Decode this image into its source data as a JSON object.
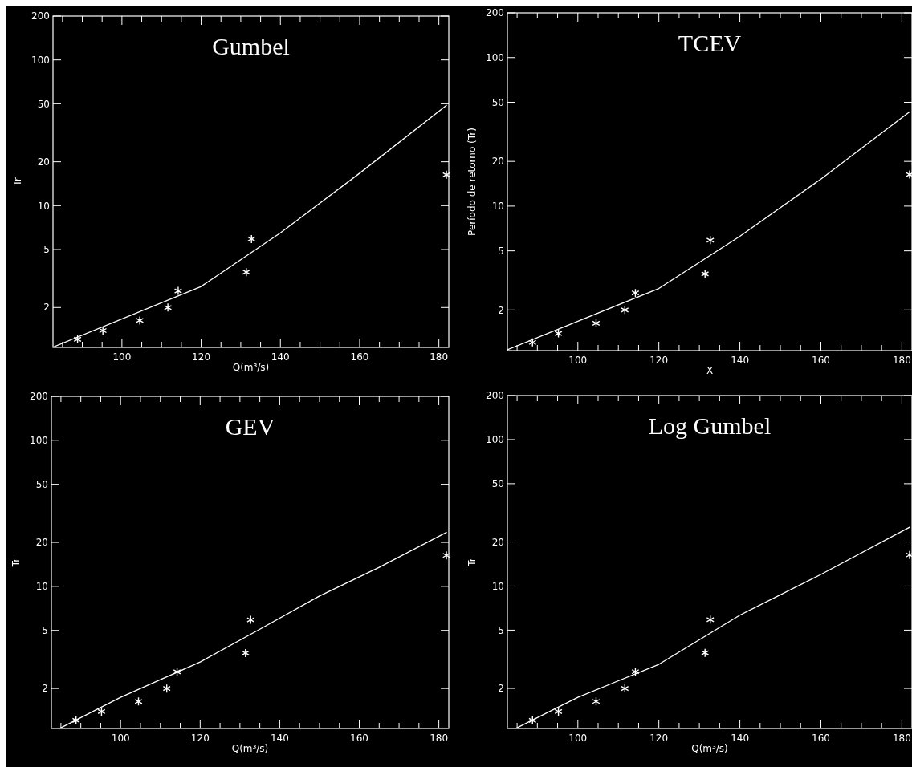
{
  "chart_data": [
    {
      "type": "line",
      "log": true,
      "title": "Gumbel",
      "xlabel": "Q(m³/s)",
      "ylabel": "Tr",
      "xlim": [
        82.6,
        182.5
      ],
      "ylim": [
        1.065,
        200
      ],
      "xticks": [
        {
          "value": 85,
          "label": null
        },
        {
          "value": 90,
          "label": null
        },
        {
          "value": 95,
          "label": null
        },
        100,
        {
          "value": 105,
          "label": null
        },
        {
          "value": 110,
          "label": null
        },
        {
          "value": 115,
          "label": null
        },
        120,
        {
          "value": 125,
          "label": null
        },
        {
          "value": 130,
          "label": null
        },
        {
          "value": 135,
          "label": null
        },
        140,
        {
          "value": 145,
          "label": null
        },
        {
          "value": 150,
          "label": null
        },
        {
          "value": 155,
          "label": null
        },
        160,
        {
          "value": 165,
          "label": null
        },
        {
          "value": 170,
          "label": null
        },
        {
          "value": 175,
          "label": null
        },
        180
      ],
      "yticks": [
        2,
        5,
        10,
        20,
        50,
        100,
        200
      ],
      "grid": false,
      "series": [
        {
          "type": "scatter",
          "marker": "cross",
          "color": "#ffffff",
          "x": [
            88.8,
            95.2,
            104.5,
            111.6,
            114.2,
            131.4,
            132.7,
            181.9
          ],
          "values": [
            1.21,
            1.39,
            1.63,
            2,
            2.6,
            3.5,
            5.9,
            16.3
          ]
        },
        {
          "type": "line",
          "marker": "none",
          "color": "#ffffff",
          "x": [
            82.6,
            120,
            140,
            160,
            182
          ],
          "values": [
            1.07,
            2.79,
            6.5,
            16.7,
            49
          ]
        }
      ]
    },
    {
      "type": "line",
      "log": true,
      "title": "TCEV",
      "xlabel": "X",
      "ylabel": "Período de retorno (Tr)",
      "xlim": [
        82.6,
        182.5
      ],
      "ylim": [
        1.065,
        200
      ],
      "xticks": [
        {
          "value": 85,
          "label": null
        },
        {
          "value": 90,
          "label": null
        },
        {
          "value": 95,
          "label": null
        },
        100,
        {
          "value": 105,
          "label": null
        },
        {
          "value": 110,
          "label": null
        },
        {
          "value": 115,
          "label": null
        },
        120,
        {
          "value": 125,
          "label": null
        },
        {
          "value": 130,
          "label": null
        },
        {
          "value": 135,
          "label": null
        },
        140,
        {
          "value": 145,
          "label": null
        },
        {
          "value": 150,
          "label": null
        },
        {
          "value": 155,
          "label": null
        },
        160,
        {
          "value": 165,
          "label": null
        },
        {
          "value": 170,
          "label": null
        },
        {
          "value": 175,
          "label": null
        },
        180
      ],
      "yticks": [
        2,
        5,
        10,
        20,
        50,
        100,
        200
      ],
      "grid": false,
      "series": [
        {
          "type": "scatter",
          "marker": "cross",
          "color": "#ffffff",
          "x": [
            88.8,
            95.2,
            104.5,
            111.6,
            114.2,
            131.4,
            132.7,
            181.9
          ],
          "values": [
            1.21,
            1.39,
            1.63,
            2,
            2.6,
            3.5,
            5.9,
            16.3
          ]
        },
        {
          "type": "line",
          "marker": "none",
          "color": "#ffffff",
          "x": [
            82.6,
            120,
            140,
            160,
            182
          ],
          "values": [
            1.08,
            2.79,
            6.27,
            15.2,
            43.3
          ]
        }
      ]
    },
    {
      "type": "line",
      "log": true,
      "title": "GEV",
      "xlabel": "Q(m³/s)",
      "ylabel": "Tr",
      "xlim": [
        82.6,
        182.5
      ],
      "ylim": [
        1.065,
        200
      ],
      "xticks": [
        {
          "value": 85,
          "label": null
        },
        {
          "value": 90,
          "label": null
        },
        {
          "value": 95,
          "label": null
        },
        100,
        {
          "value": 105,
          "label": null
        },
        {
          "value": 110,
          "label": null
        },
        {
          "value": 115,
          "label": null
        },
        120,
        {
          "value": 125,
          "label": null
        },
        {
          "value": 130,
          "label": null
        },
        {
          "value": 135,
          "label": null
        },
        140,
        {
          "value": 145,
          "label": null
        },
        {
          "value": 150,
          "label": null
        },
        {
          "value": 155,
          "label": null
        },
        160,
        {
          "value": 165,
          "label": null
        },
        {
          "value": 170,
          "label": null
        },
        {
          "value": 175,
          "label": null
        },
        180
      ],
      "yticks": [
        2,
        5,
        10,
        20,
        50,
        100,
        200
      ],
      "grid": false,
      "series": [
        {
          "type": "scatter",
          "marker": "cross",
          "color": "#ffffff",
          "x": [
            88.8,
            95.2,
            104.5,
            111.6,
            114.2,
            131.4,
            132.7,
            181.9
          ],
          "values": [
            1.21,
            1.39,
            1.63,
            2,
            2.6,
            3.5,
            5.9,
            16.3
          ]
        },
        {
          "type": "line",
          "marker": "none",
          "color": "#ffffff",
          "x": [
            84.8,
            100,
            120,
            135,
            150,
            165,
            182
          ],
          "values": [
            1.07,
            1.74,
            3.04,
            5.09,
            8.6,
            13.5,
            23.5
          ]
        }
      ]
    },
    {
      "type": "line",
      "log": true,
      "title": "Log Gumbel",
      "xlabel": "Q(m³/s)",
      "ylabel": "Tr",
      "xlim": [
        82.6,
        182.5
      ],
      "ylim": [
        1.065,
        200
      ],
      "xticks": [
        {
          "value": 85,
          "label": null
        },
        {
          "value": 90,
          "label": null
        },
        {
          "value": 95,
          "label": null
        },
        100,
        {
          "value": 105,
          "label": null
        },
        {
          "value": 110,
          "label": null
        },
        {
          "value": 115,
          "label": null
        },
        120,
        {
          "value": 125,
          "label": null
        },
        {
          "value": 130,
          "label": null
        },
        {
          "value": 135,
          "label": null
        },
        140,
        {
          "value": 145,
          "label": null
        },
        {
          "value": 150,
          "label": null
        },
        {
          "value": 155,
          "label": null
        },
        160,
        {
          "value": 165,
          "label": null
        },
        {
          "value": 170,
          "label": null
        },
        {
          "value": 175,
          "label": null
        },
        180
      ],
      "yticks": [
        2,
        5,
        10,
        20,
        50,
        100,
        200
      ],
      "grid": false,
      "series": [
        {
          "type": "scatter",
          "marker": "cross",
          "color": "#ffffff",
          "x": [
            88.8,
            95.2,
            104.5,
            111.6,
            114.2,
            131.4,
            132.7,
            181.9
          ],
          "values": [
            1.21,
            1.39,
            1.63,
            2,
            2.6,
            3.5,
            5.9,
            16.3
          ]
        },
        {
          "type": "line",
          "marker": "none",
          "color": "#ffffff",
          "x": [
            84.8,
            100,
            120,
            140,
            160,
            182
          ],
          "values": [
            1.07,
            1.74,
            2.92,
            6.33,
            12.0,
            25.3
          ]
        }
      ]
    }
  ]
}
